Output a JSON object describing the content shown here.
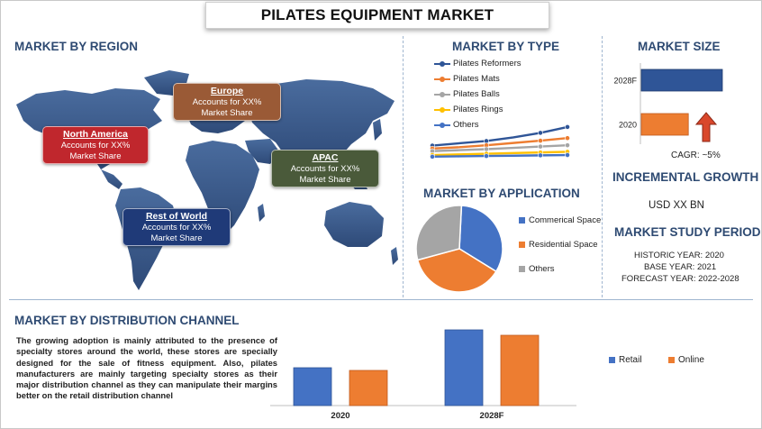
{
  "title": "PILATES EQUIPMENT MARKET",
  "sections": {
    "region": "MARKET BY REGION",
    "type": "MARKET BY TYPE",
    "size": "MARKET SIZE",
    "application": "MARKET BY APPLICATION",
    "incremental": "INCREMENTAL GROWTH",
    "study": "MARKET STUDY PERIOD",
    "distribution": "MARKET BY DISTRIBUTION CHANNEL"
  },
  "regions": [
    {
      "name": "North America",
      "line1": "Accounts for XX%",
      "line2": "Market Share",
      "color": "#c0272d"
    },
    {
      "name": "Europe",
      "line1": "Accounts for XX%",
      "line2": "Market Share",
      "color": "#9a5a36"
    },
    {
      "name": "APAC",
      "line1": "Accounts for XX%",
      "line2": "Market Share",
      "color": "#4a5a3a"
    },
    {
      "name": "Rest of World",
      "line1": "Accounts for XX%",
      "line2": "Market Share",
      "color": "#1f3a78"
    }
  ],
  "incremental_value": "USD XX BN",
  "cagr": "CAGR:  ~5%",
  "study_period": {
    "historic": "HISTORIC YEAR: 2020",
    "base": "BASE YEAR: 2021",
    "forecast": "FORECAST YEAR: 2022-2028"
  },
  "distribution_text": "The growing adoption is mainly attributed to the presence of specialty stores around the world, these stores are specially designed for the sale of fitness equipment. Also, pilates manufacturers are mainly targeting specialty stores as their major distribution channel as they can manipulate their margins better on the retail distribution channel",
  "colors": {
    "blue": "#4472c4",
    "orange": "#ed7d31",
    "gray": "#a5a5a5",
    "yellow": "#ffc000",
    "lightblue": "#5b9bd5",
    "title_blue": "#2e4a72",
    "arrow_red": "#c0392b"
  },
  "chart_data": [
    {
      "type": "line",
      "id": "type",
      "x": [
        1,
        2,
        3,
        4,
        5,
        6
      ],
      "series": [
        {
          "name": "Pilates Reformers",
          "color": "#2f5597",
          "values": [
            13.5,
            14.2,
            14.9,
            16.0,
            17.4,
            19.2
          ]
        },
        {
          "name": "Pilates Mats",
          "color": "#ed7d31",
          "values": [
            12.6,
            13.0,
            13.6,
            14.3,
            15.0,
            15.8
          ]
        },
        {
          "name": "Pilates Balls",
          "color": "#a5a5a5",
          "values": [
            11.8,
            12.1,
            12.4,
            12.8,
            13.2,
            13.6
          ]
        },
        {
          "name": "Pilates Rings",
          "color": "#ffc000",
          "values": [
            10.6,
            10.8,
            11.0,
            11.2,
            11.4,
            11.6
          ]
        },
        {
          "name": "Others",
          "color": "#4472c4",
          "values": [
            10.1,
            10.2,
            10.3,
            10.4,
            10.5,
            10.6
          ]
        }
      ]
    },
    {
      "type": "bar",
      "id": "size",
      "orientation": "horizontal",
      "categories": [
        "2028F",
        "2020"
      ],
      "values": [
        100,
        58
      ],
      "colors": [
        "#2f5597",
        "#ed7d31"
      ]
    },
    {
      "type": "pie",
      "id": "application",
      "labels": [
        "Commerical Space",
        "Residential Space",
        "Others"
      ],
      "values": [
        33,
        37,
        30
      ],
      "colors": [
        "#4472c4",
        "#ed7d31",
        "#a5a5a5"
      ]
    },
    {
      "type": "bar",
      "id": "distribution",
      "categories": [
        "2020",
        "2028F"
      ],
      "series": [
        {
          "name": "Retail",
          "color": "#4472c4",
          "values": [
            42,
            84
          ]
        },
        {
          "name": "Online",
          "color": "#ed7d31",
          "values": [
            39,
            78
          ]
        }
      ],
      "ylim": [
        0,
        90
      ]
    }
  ]
}
